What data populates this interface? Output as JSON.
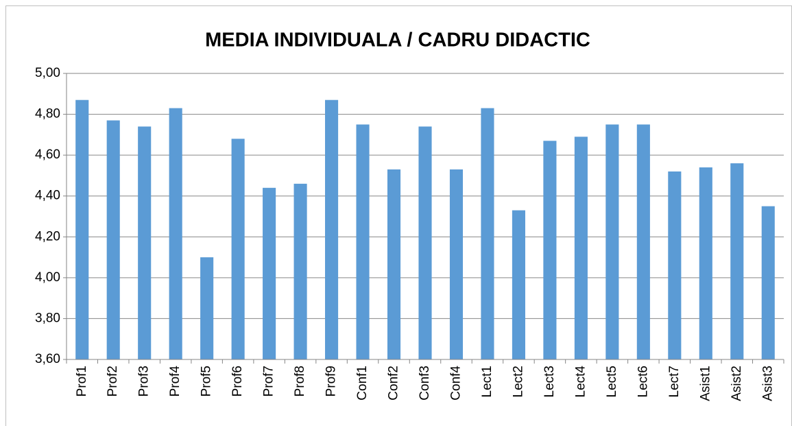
{
  "chart_data": {
    "type": "bar",
    "title": "MEDIA INDIVIDUALA / CADRU DIDACTIC",
    "categories": [
      "Prof1",
      "Prof2",
      "Prof3",
      "Prof4",
      "Prof5",
      "Prof6",
      "Prof7",
      "Prof8",
      "Prof9",
      "Conf1",
      "Conf2",
      "Conf3",
      "Conf4",
      "Lect1",
      "Lect2",
      "Lect3",
      "Lect4",
      "Lect5",
      "Lect6",
      "Lect7",
      "Asist1",
      "Asist2",
      "Asist3"
    ],
    "values": [
      4.87,
      4.77,
      4.74,
      4.83,
      4.1,
      4.68,
      4.44,
      4.46,
      4.87,
      4.75,
      4.53,
      4.74,
      4.53,
      4.83,
      4.33,
      4.67,
      4.69,
      4.75,
      4.75,
      4.52,
      4.54,
      4.56,
      4.35
    ],
    "color": "#5b9bd5",
    "ylim": [
      3.6,
      5.0
    ],
    "yticks": [
      {
        "value": 3.6,
        "label": "3,60"
      },
      {
        "value": 3.8,
        "label": "3,80"
      },
      {
        "value": 4.0,
        "label": "4,00"
      },
      {
        "value": 4.2,
        "label": "4,20"
      },
      {
        "value": 4.4,
        "label": "4,40"
      },
      {
        "value": 4.6,
        "label": "4,60"
      },
      {
        "value": 4.8,
        "label": "4,80"
      },
      {
        "value": 5.0,
        "label": "5,00"
      }
    ],
    "grid": true
  }
}
